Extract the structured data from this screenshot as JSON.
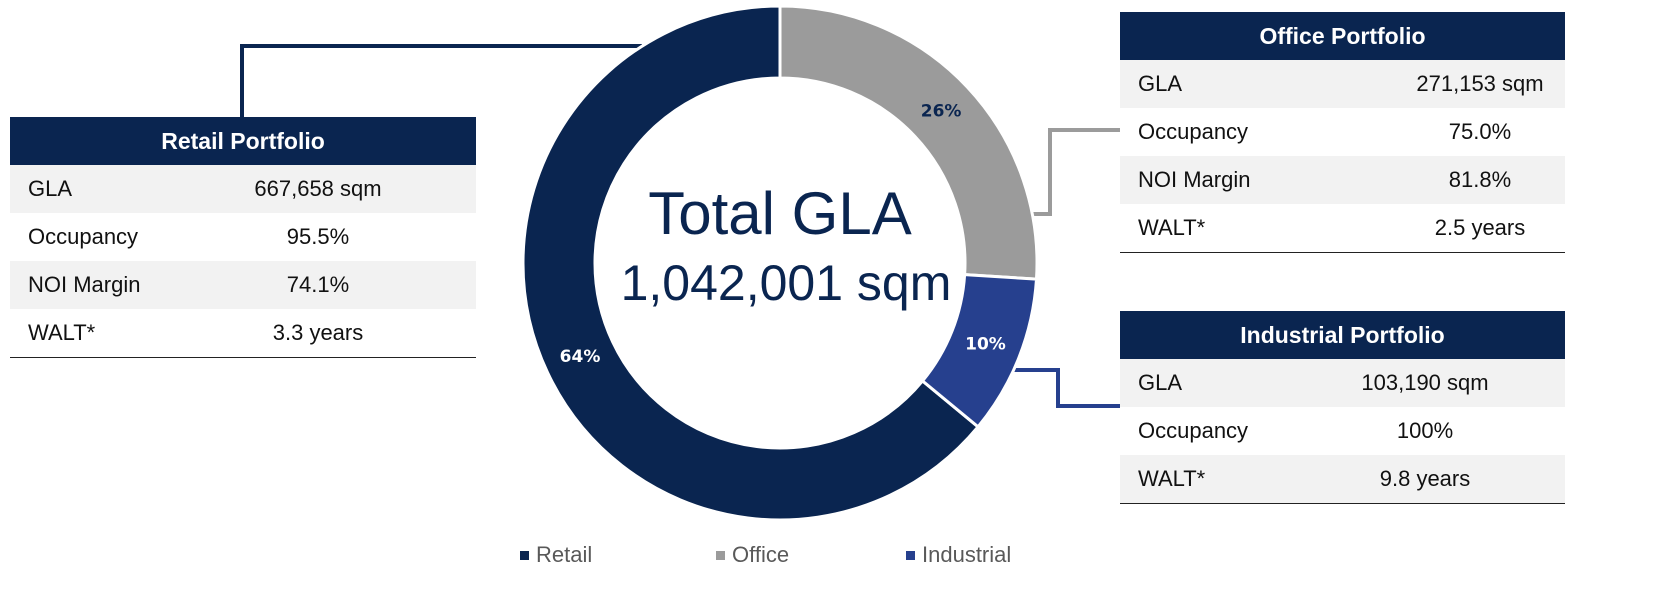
{
  "chart_data": {
    "type": "donut",
    "categories": [
      "Retail",
      "Office",
      "Industrial"
    ],
    "values": [
      64,
      26,
      10
    ],
    "value_labels": [
      "64%",
      "26%",
      "10%"
    ],
    "colors": [
      "#0a2550",
      "#9b9b9b",
      "#26408e"
    ],
    "label_colors": [
      "#ffffff",
      "#0a2550",
      "#ffffff"
    ],
    "center_title": "Total GLA",
    "center_value": "1,042,001 sqm"
  },
  "tables": [
    {
      "title": "Retail Portfolio",
      "rows": [
        [
          "GLA",
          "667,658 sqm"
        ],
        [
          "Occupancy",
          "95.5%"
        ],
        [
          "NOI Margin",
          "74.1%"
        ],
        [
          "WALT*",
          "3.3 years"
        ]
      ]
    },
    {
      "title": "Office Portfolio",
      "rows": [
        [
          "GLA",
          "271,153 sqm"
        ],
        [
          "Occupancy",
          "75.0%"
        ],
        [
          "NOI Margin",
          "81.8%"
        ],
        [
          "WALT*",
          "2.5 years"
        ]
      ]
    },
    {
      "title": "Industrial Portfolio",
      "rows": [
        [
          "GLA",
          "103,190 sqm"
        ],
        [
          "Occupancy",
          "100%"
        ],
        [
          "WALT*",
          "9.8 years"
        ]
      ]
    }
  ]
}
